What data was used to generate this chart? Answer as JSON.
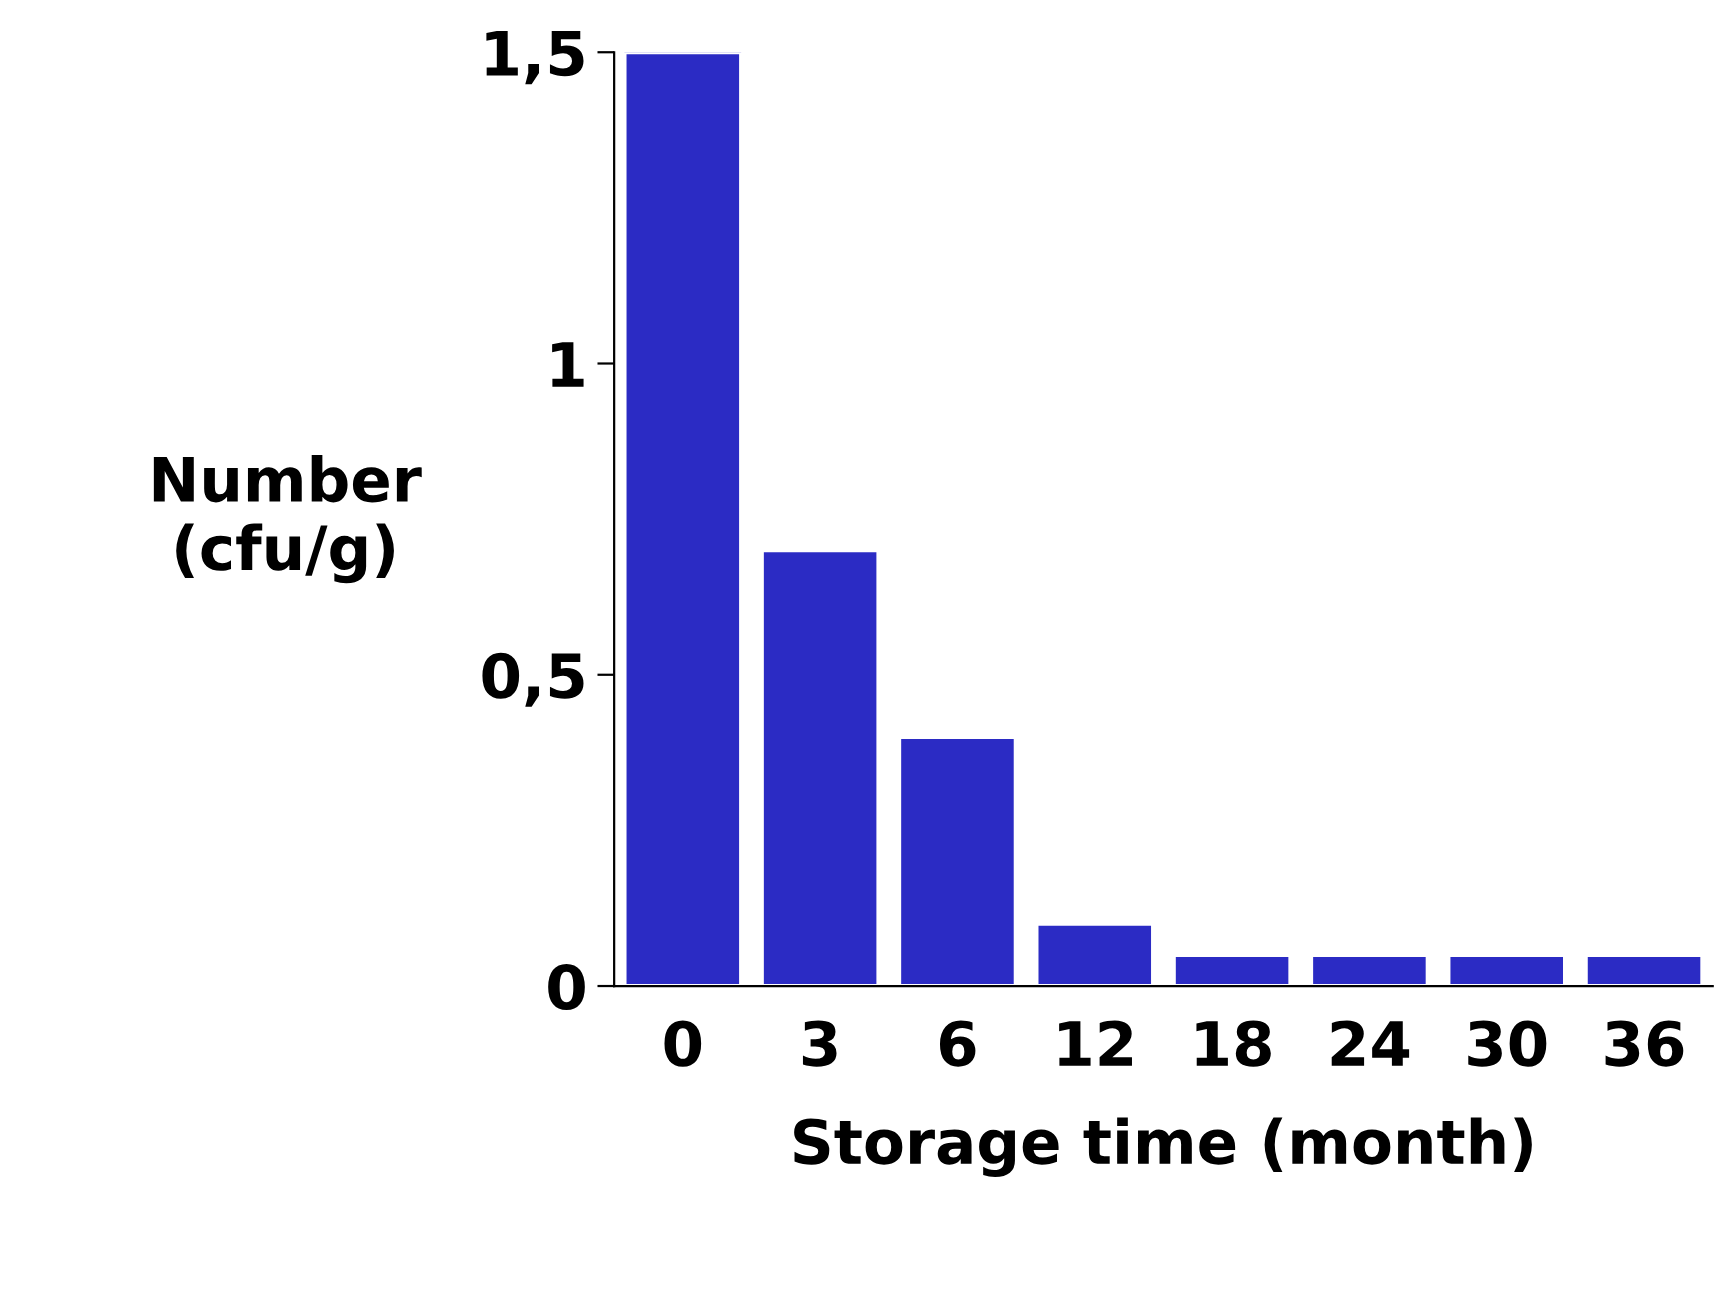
{
  "chart_data": {
    "type": "bar",
    "xlabel": "Storage time (month)",
    "ylabel": "Number\n(cfu/g)",
    "categories": [
      "0",
      "3",
      "6",
      "12",
      "18",
      "24",
      "30",
      "36"
    ],
    "values": [
      1.5,
      0.7,
      0.4,
      0.1,
      0.05,
      0.05,
      0.05,
      0.05
    ],
    "color": "#2b2bc4",
    "ylim": [
      0,
      1.5
    ],
    "yticks": [
      {
        "value": 0,
        "label": "0"
      },
      {
        "value": 0.5,
        "label": "0,5"
      },
      {
        "value": 1,
        "label": "1"
      },
      {
        "value": 1.5,
        "label": "1,5"
      }
    ],
    "grid": false,
    "legend": false
  }
}
